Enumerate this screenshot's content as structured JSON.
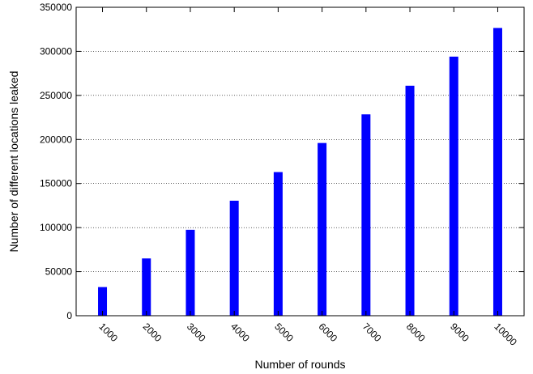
{
  "chart_data": {
    "type": "bar",
    "title": "",
    "xlabel": "Number of rounds",
    "ylabel": "Number of different locations leaked",
    "categories": [
      "1000",
      "2000",
      "3000",
      "4000",
      "5000",
      "6000",
      "7000",
      "8000",
      "9000",
      "10000"
    ],
    "series": [
      {
        "values": [
          32500,
          65000,
          97500,
          130500,
          163000,
          196000,
          228500,
          261000,
          294000,
          326500
        ]
      }
    ],
    "ylim": [
      0,
      350000
    ],
    "yticks": [
      0,
      50000,
      100000,
      150000,
      200000,
      250000,
      300000,
      350000
    ],
    "ytick_labels": [
      "0",
      "50000",
      "100000",
      "150000",
      "200000",
      "250000",
      "300000",
      "350000"
    ],
    "grid": "horizontal dotted",
    "bar_color": "#0000ff"
  }
}
